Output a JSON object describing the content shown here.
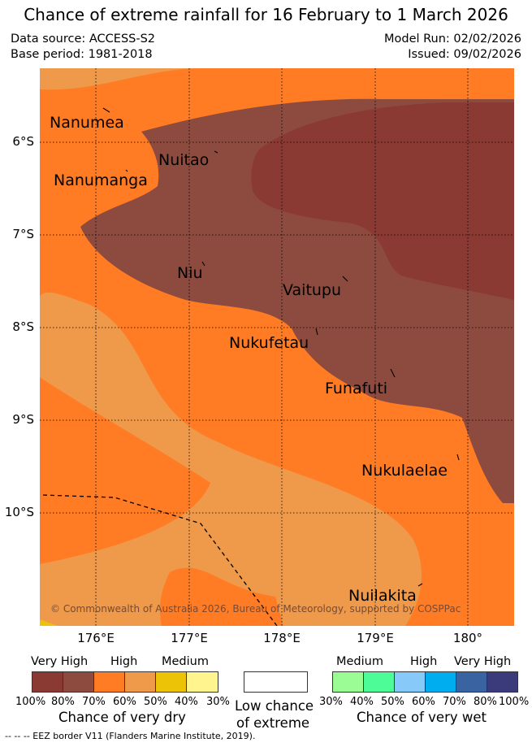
{
  "title": "Chance of extreme rainfall for 16 February to 1 March 2026",
  "data_source": "Data source: ACCESS-S2",
  "base_period": "Base period: 1981-2018",
  "model_run": "Model Run: 02/02/2026",
  "issued": "Issued: 09/02/2026",
  "copyright": "© Commonwealth of Australia 2026, Bureau of Meteorology, supported by COSPPac",
  "map": {
    "lat_labels": [
      "6°S",
      "7°S",
      "8°S",
      "9°S",
      "10°S"
    ],
    "lon_labels": [
      "176°E",
      "177°E",
      "178°E",
      "179°E",
      "180°"
    ],
    "places": [
      "Nanumea",
      "Nuitao",
      "Nanumanga",
      "Niu",
      "Vaitupu",
      "Nukufetau",
      "Funafuti",
      "Nukulaelae",
      "Nuilakita"
    ]
  },
  "legend": {
    "dry": {
      "headers": [
        "Very High",
        "High",
        "Medium"
      ],
      "percents": [
        "100%",
        "80%",
        "70%",
        "60%",
        "50%",
        "40%",
        "30%"
      ],
      "caption": "Chance of very dry",
      "colors": [
        "#8b3a33",
        "#8c4b3e",
        "#ff7b24",
        "#ee9a4a",
        "#ecc306",
        "#fff48d"
      ]
    },
    "low": {
      "caption_line1": "Low chance",
      "caption_line2": "of extreme",
      "color": "#ffffff"
    },
    "wet": {
      "headers": [
        "Medium",
        "High",
        "Very High"
      ],
      "percents": [
        "30%",
        "40%",
        "50%",
        "60%",
        "70%",
        "80%",
        "100%"
      ],
      "caption": "Chance of very wet",
      "colors": [
        "#9bfc96",
        "#4efc97",
        "#87cafa",
        "#00adef",
        "#3a63a2",
        "#3b3b7c"
      ]
    }
  },
  "footer": "--  --  -- EEZ border V11 (Flanders Marine Institute, 2019)."
}
